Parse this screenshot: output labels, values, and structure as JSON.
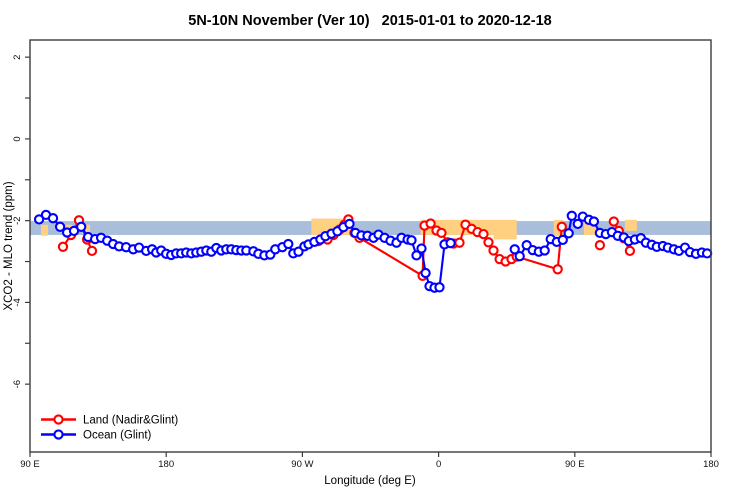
{
  "chart_data": {
    "type": "line",
    "title": "5N-10N November (Ver 10)   2015-01-01 to 2020-12-18",
    "xlabel": "Longitude (deg E)",
    "ylabel": "XCO2 - MLO trend (ppm)",
    "xlim": [
      90,
      540
    ],
    "ylim": [
      -7.66,
      2.42
    ],
    "grid": false,
    "x_ticks": [
      {
        "lon": 90,
        "label": "90 E"
      },
      {
        "lon": 180,
        "label": "180"
      },
      {
        "lon": 270,
        "label": "90 W"
      },
      {
        "lon": 360,
        "label": "0"
      },
      {
        "lon": 450,
        "label": "90 E"
      },
      {
        "lon": 540,
        "label": "180"
      }
    ],
    "y_major_ticks": [
      {
        "v": 2,
        "label": "2"
      },
      {
        "v": 0,
        "label": "0"
      },
      {
        "v": -2,
        "label": "-2"
      },
      {
        "v": -4,
        "label": "-4"
      },
      {
        "v": -6,
        "label": "-6"
      }
    ],
    "y_minor_ticks": [
      1,
      -1,
      -3,
      -5
    ],
    "reference_band": {
      "from": -2.01,
      "to": -2.35,
      "color": "#a9bedb"
    },
    "highlight_color": "#ffd080",
    "highlight_patches": [
      {
        "x": [
          97.3,
          101.9
        ],
        "y": [
          -2.1,
          -2.37
        ]
      },
      {
        "x": [
          113.2,
          117.8
        ],
        "y": [
          -2.1,
          -2.37
        ]
      },
      {
        "x": [
          125.7,
          129.7
        ],
        "y": [
          -2.1,
          -2.37
        ]
      },
      {
        "x": [
          275.9,
          303.1
        ],
        "y": [
          -1.95,
          -2.35
        ]
      },
      {
        "x": [
          348.1,
          411.6
        ],
        "y": [
          -1.98,
          -2.35
        ]
      },
      {
        "x": [
          396.3,
          411.6
        ],
        "y": [
          -2.3,
          -2.46
        ]
      },
      {
        "x": [
          436.1,
          442.1
        ],
        "y": [
          -1.98,
          -2.38
        ]
      },
      {
        "x": [
          456.0,
          465.3
        ],
        "y": [
          -2.02,
          -2.35
        ]
      },
      {
        "x": [
          483.1,
          491.0
        ],
        "y": [
          -1.98,
          -2.25
        ]
      }
    ],
    "legend_position": "bottom-left",
    "series": [
      {
        "name": "Land (Nadir&Glint)",
        "color": "#ff0000",
        "marker": "open-circle",
        "segments": [
          [
            [
              111.8,
              -2.64
            ],
            [
              117.1,
              -2.35
            ],
            [
              122.4,
              -1.99
            ],
            [
              127.7,
              -2.46
            ],
            [
              131.0,
              -2.74
            ]
          ],
          [
            [
              280.6,
              -2.5
            ],
            [
              286.6,
              -2.46
            ],
            [
              290.5,
              -2.35
            ],
            [
              294.5,
              -2.22
            ],
            [
              297.8,
              -2.1
            ],
            [
              300.4,
              -1.97
            ],
            [
              304.4,
              -2.3
            ],
            [
              307.7,
              -2.42
            ],
            [
              349.4,
              -3.35
            ],
            [
              350.7,
              -2.12
            ],
            [
              354.7,
              -2.07
            ],
            [
              358.6,
              -2.24
            ],
            [
              361.9,
              -2.3
            ],
            [
              365.9,
              -2.53
            ],
            [
              369.9,
              -2.56
            ],
            [
              373.8,
              -2.54
            ],
            [
              377.8,
              -2.1
            ],
            [
              381.8,
              -2.2
            ],
            [
              385.7,
              -2.28
            ],
            [
              389.7,
              -2.33
            ],
            [
              393.0,
              -2.53
            ],
            [
              396.3,
              -2.73
            ],
            [
              400.3,
              -2.94
            ],
            [
              404.3,
              -3.0
            ],
            [
              408.2,
              -2.94
            ],
            [
              411.6,
              -2.88
            ],
            [
              438.7,
              -3.19
            ],
            [
              441.4,
              -2.15
            ]
          ],
          [
            [
              466.6,
              -2.6
            ]
          ],
          [
            [
              475.8,
              -2.02
            ],
            [
              479.1,
              -2.25
            ],
            [
              482.4,
              -2.43
            ],
            [
              486.4,
              -2.74
            ]
          ]
        ]
      },
      {
        "name": "Ocean (Glint)",
        "color": "#0000ff",
        "marker": "open-circle",
        "segments": [
          [
            [
              96.0,
              -1.97
            ],
            [
              100.6,
              -1.86
            ],
            [
              105.2,
              -1.94
            ],
            [
              109.9,
              -2.15
            ],
            [
              114.5,
              -2.29
            ],
            [
              119.1,
              -2.25
            ],
            [
              123.8,
              -2.15
            ],
            [
              128.4,
              -2.4
            ],
            [
              133.0,
              -2.45
            ],
            [
              137.0,
              -2.42
            ],
            [
              141.0,
              -2.49
            ],
            [
              144.9,
              -2.57
            ],
            [
              148.9,
              -2.63
            ],
            [
              153.5,
              -2.65
            ],
            [
              158.2,
              -2.7
            ],
            [
              162.1,
              -2.66
            ],
            [
              166.8,
              -2.74
            ],
            [
              170.7,
              -2.7
            ],
            [
              173.4,
              -2.78
            ],
            [
              176.7,
              -2.73
            ],
            [
              180.0,
              -2.81
            ],
            [
              183.3,
              -2.84
            ],
            [
              186.6,
              -2.8
            ],
            [
              189.9,
              -2.8
            ],
            [
              193.2,
              -2.78
            ],
            [
              196.6,
              -2.8
            ],
            [
              199.9,
              -2.78
            ],
            [
              203.2,
              -2.76
            ],
            [
              206.5,
              -2.73
            ],
            [
              209.8,
              -2.76
            ],
            [
              213.1,
              -2.67
            ],
            [
              216.4,
              -2.73
            ],
            [
              219.7,
              -2.7
            ],
            [
              223.0,
              -2.7
            ],
            [
              226.3,
              -2.72
            ],
            [
              229.6,
              -2.73
            ],
            [
              232.9,
              -2.73
            ],
            [
              237.6,
              -2.75
            ],
            [
              240.9,
              -2.81
            ],
            [
              244.9,
              -2.85
            ],
            [
              248.8,
              -2.83
            ],
            [
              252.1,
              -2.7
            ],
            [
              256.8,
              -2.65
            ],
            [
              260.7,
              -2.57
            ],
            [
              264.0,
              -2.8
            ],
            [
              267.4,
              -2.76
            ],
            [
              271.3,
              -2.63
            ],
            [
              274.0,
              -2.58
            ],
            [
              277.9,
              -2.52
            ],
            [
              281.9,
              -2.46
            ],
            [
              285.2,
              -2.38
            ],
            [
              289.2,
              -2.32
            ],
            [
              293.1,
              -2.26
            ],
            [
              297.1,
              -2.16
            ],
            [
              301.1,
              -2.08
            ],
            [
              305.0,
              -2.3
            ],
            [
              309.0,
              -2.36
            ],
            [
              313.0,
              -2.37
            ],
            [
              317.0,
              -2.42
            ],
            [
              320.3,
              -2.34
            ],
            [
              324.3,
              -2.42
            ],
            [
              328.2,
              -2.49
            ],
            [
              332.2,
              -2.54
            ],
            [
              335.5,
              -2.42
            ],
            [
              339.5,
              -2.46
            ],
            [
              342.1,
              -2.48
            ],
            [
              345.4,
              -2.85
            ],
            [
              348.7,
              -2.68
            ],
            [
              351.4,
              -3.28
            ],
            [
              354.0,
              -3.6
            ],
            [
              357.3,
              -3.64
            ],
            [
              360.6,
              -3.63
            ],
            [
              363.9,
              -2.58
            ],
            [
              367.9,
              -2.55
            ]
          ],
          [
            [
              410.3,
              -2.7
            ],
            [
              413.6,
              -2.87
            ],
            [
              418.2,
              -2.6
            ],
            [
              422.2,
              -2.72
            ],
            [
              426.2,
              -2.76
            ],
            [
              430.1,
              -2.73
            ],
            [
              434.1,
              -2.45
            ],
            [
              438.1,
              -2.52
            ],
            [
              442.1,
              -2.47
            ],
            [
              446.0,
              -2.31
            ],
            [
              448.0,
              -1.88
            ],
            [
              452.0,
              -2.08
            ],
            [
              455.3,
              -1.9
            ],
            [
              459.3,
              -1.98
            ],
            [
              462.6,
              -2.02
            ],
            [
              466.6,
              -2.3
            ],
            [
              470.5,
              -2.33
            ],
            [
              474.5,
              -2.28
            ],
            [
              478.4,
              -2.37
            ],
            [
              482.4,
              -2.41
            ],
            [
              485.7,
              -2.5
            ],
            [
              489.7,
              -2.46
            ],
            [
              493.7,
              -2.43
            ],
            [
              497.0,
              -2.54
            ],
            [
              500.9,
              -2.59
            ],
            [
              504.2,
              -2.64
            ],
            [
              508.2,
              -2.62
            ],
            [
              511.5,
              -2.66
            ],
            [
              515.5,
              -2.7
            ],
            [
              518.8,
              -2.74
            ],
            [
              522.8,
              -2.66
            ],
            [
              526.1,
              -2.77
            ],
            [
              530.1,
              -2.81
            ],
            [
              534.0,
              -2.78
            ],
            [
              537.4,
              -2.8
            ]
          ]
        ]
      }
    ]
  }
}
